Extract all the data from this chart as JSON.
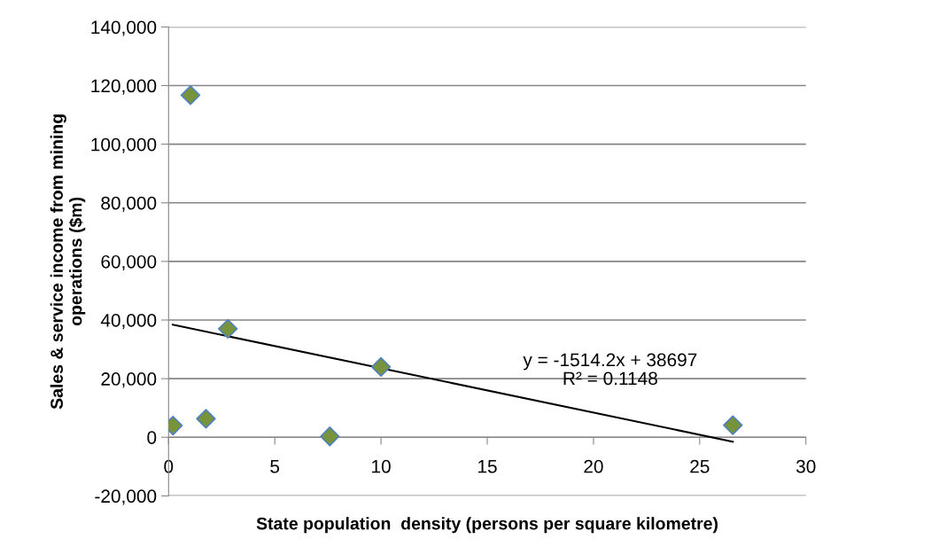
{
  "chart_data": {
    "type": "scatter",
    "xlabel": "State population  density (persons per square kilometre)",
    "ylabel": "Sales & service income from mining\noperations ($m)",
    "series": [
      {
        "color": "#77933c",
        "marker": "diamond",
        "x": [
          0.21,
          1.03,
          1.76,
          2.79,
          7.59,
          10.0,
          26.56
        ],
        "values": [
          4000,
          116700,
          6300,
          37000,
          300,
          24000,
          4100
        ]
      },
      {
        "type": "line",
        "color": "#000000",
        "marker": "none",
        "x": [
          0.2,
          26.56
        ],
        "values": [
          38400,
          -1500
        ]
      }
    ],
    "annotations": [
      "y = -1514.2x + 38697\nR² = 0.1148"
    ],
    "xlim": [
      0,
      30
    ],
    "xticks": [
      0,
      5,
      10,
      15,
      20,
      25,
      30
    ],
    "ylim": [
      -20000,
      140000
    ],
    "yticks": [
      {
        "value": -20000,
        "label": "-20,000"
      },
      {
        "value": 0,
        "label": "0"
      },
      {
        "value": 20000,
        "label": "20,000"
      },
      {
        "value": 40000,
        "label": "40,000"
      },
      {
        "value": 60000,
        "label": "60,000"
      },
      {
        "value": 80000,
        "label": "80,000"
      },
      {
        "value": 100000,
        "label": "100,000"
      },
      {
        "value": 120000,
        "label": "120,000"
      },
      {
        "value": 140000,
        "label": "140,000"
      }
    ],
    "grid": "y"
  }
}
